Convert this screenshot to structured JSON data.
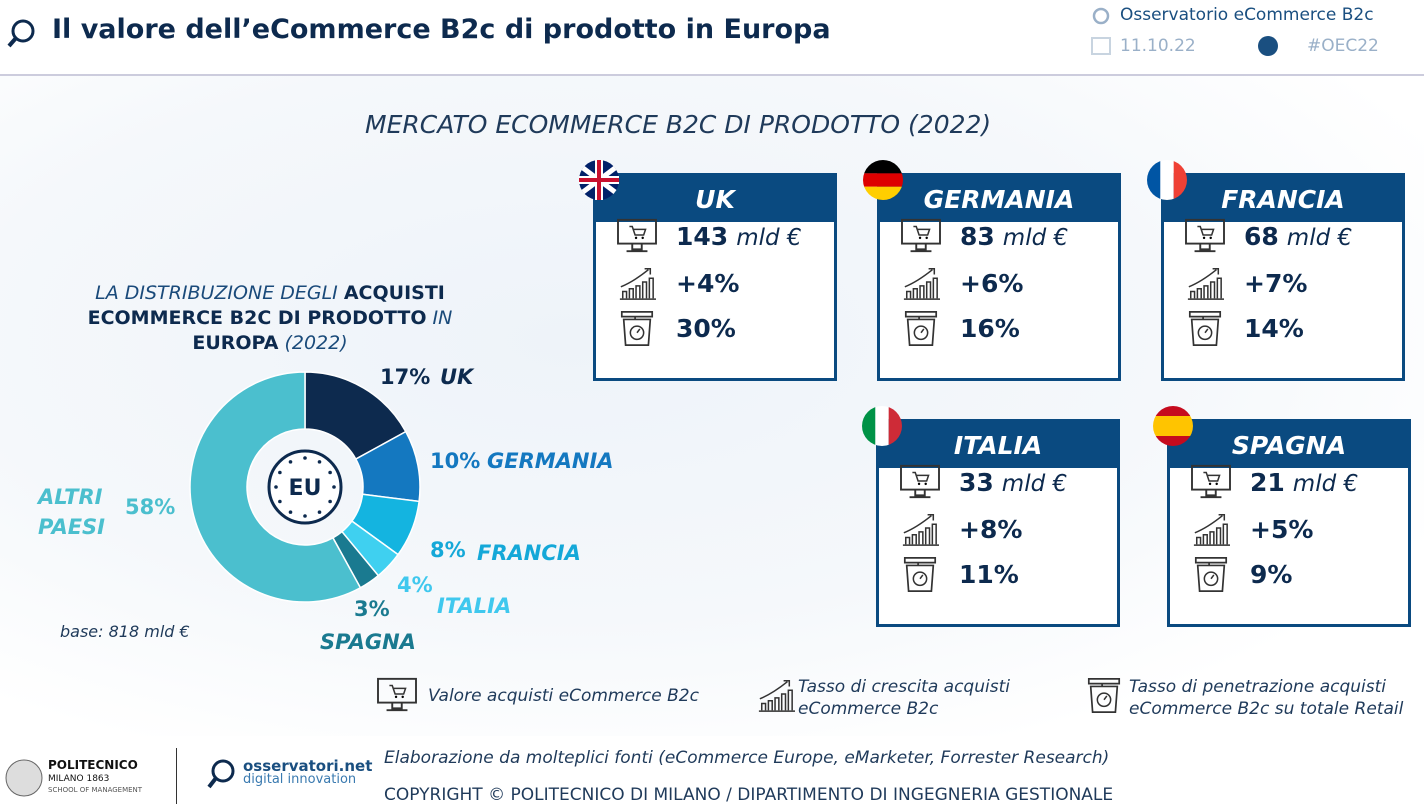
{
  "header": {
    "title": "Il valore dell’eCommerce B2c di prodotto in Europa",
    "source": "Osservatorio eCommerce B2c",
    "date": "11.10.22",
    "hashtag": "#OEC22"
  },
  "market_title": "MERCATO ECOMMERCE B2C DI PRODOTTO (2022)",
  "cards": [
    {
      "country": "UK",
      "value": 143,
      "unit": "mld €",
      "growth": "+4%",
      "share": "30%"
    },
    {
      "country": "GERMANIA",
      "value": 83,
      "unit": "mld €",
      "growth": "+6%",
      "share": "16%"
    },
    {
      "country": "FRANCIA",
      "value": 68,
      "unit": "mld €",
      "growth": "+7%",
      "share": "14%"
    },
    {
      "country": "ITALIA",
      "value": 33,
      "unit": "mld €",
      "growth": "+8%",
      "share": "11%"
    },
    {
      "country": "SPAGNA",
      "value": 21,
      "unit": "mld €",
      "growth": "+5%",
      "share": "9%"
    }
  ],
  "chart_data": {
    "type": "pie",
    "title": [
      "LA DISTRIBUZIONE DEGLI ",
      "ACQUISTI ECOMMERCE B2C DI PRODOTTO",
      " IN ",
      "EUROPA",
      " (2022)"
    ],
    "categories": [
      "UK",
      "GERMANIA",
      "FRANCIA",
      "ITALIA",
      "SPAGNA",
      "ALTRI PAESI"
    ],
    "values": [
      17,
      10,
      8,
      4,
      3,
      58
    ],
    "value_labels": [
      "17%",
      "10%",
      "8%",
      "4%",
      "3%",
      "58%"
    ],
    "colors": [
      "#0d2a4e",
      "#1478c0",
      "#14b4e0",
      "#3fd0f0",
      "#1a7a90",
      "#4bbfce"
    ],
    "center_label": "EU",
    "note": "base: 818 mld €"
  },
  "legend": [
    "Valore acquisti eCommerce B2c",
    "Tasso di crescita acquisti eCommerce B2c",
    "Tasso di penetrazione acquisti eCommerce B2c su totale Retail"
  ],
  "footer": {
    "source": "Elaborazione da molteplici fonti (eCommerce Europe, eMarketer, Forrester Research)",
    "copyright": "COPYRIGHT © POLITECNICO DI MILANO / DIPARTIMENTO DI INGEGNERIA GESTIONALE",
    "logo1": [
      "POLITECNICO",
      "MILANO 1863",
      "SCHOOL OF MANAGEMENT"
    ],
    "logo2": [
      "osservatori.net",
      "digital innovation"
    ]
  }
}
